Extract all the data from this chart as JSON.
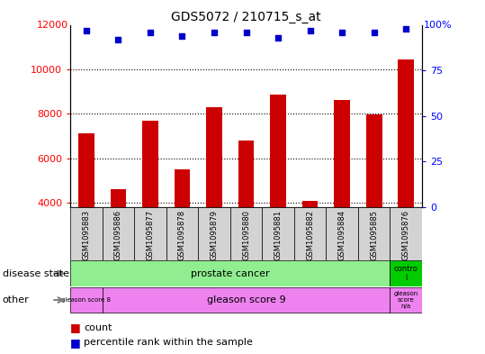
{
  "title": "GDS5072 / 210715_s_at",
  "samples": [
    "GSM1095883",
    "GSM1095886",
    "GSM1095877",
    "GSM1095878",
    "GSM1095879",
    "GSM1095880",
    "GSM1095881",
    "GSM1095882",
    "GSM1095884",
    "GSM1095885",
    "GSM1095876"
  ],
  "bar_values": [
    7100,
    4600,
    7700,
    5500,
    8300,
    6800,
    8850,
    4100,
    8600,
    7950,
    10450
  ],
  "percentile_values": [
    97,
    92,
    96,
    94,
    96,
    96,
    93,
    97,
    96,
    96,
    98
  ],
  "bar_color": "#cc0000",
  "dot_color": "#0000cc",
  "ylim_left": [
    3800,
    12000
  ],
  "ylim_right": [
    0,
    100
  ],
  "yticks_left": [
    4000,
    6000,
    8000,
    10000
  ],
  "yticks_right": [
    0,
    25,
    50,
    75
  ],
  "bar_bottom": 3800,
  "bar_width": 0.5,
  "bg_color": "#ffffff",
  "grid_color": "#000000",
  "label_fontsize": 8,
  "sample_fontsize": 6,
  "title_fontsize": 10
}
